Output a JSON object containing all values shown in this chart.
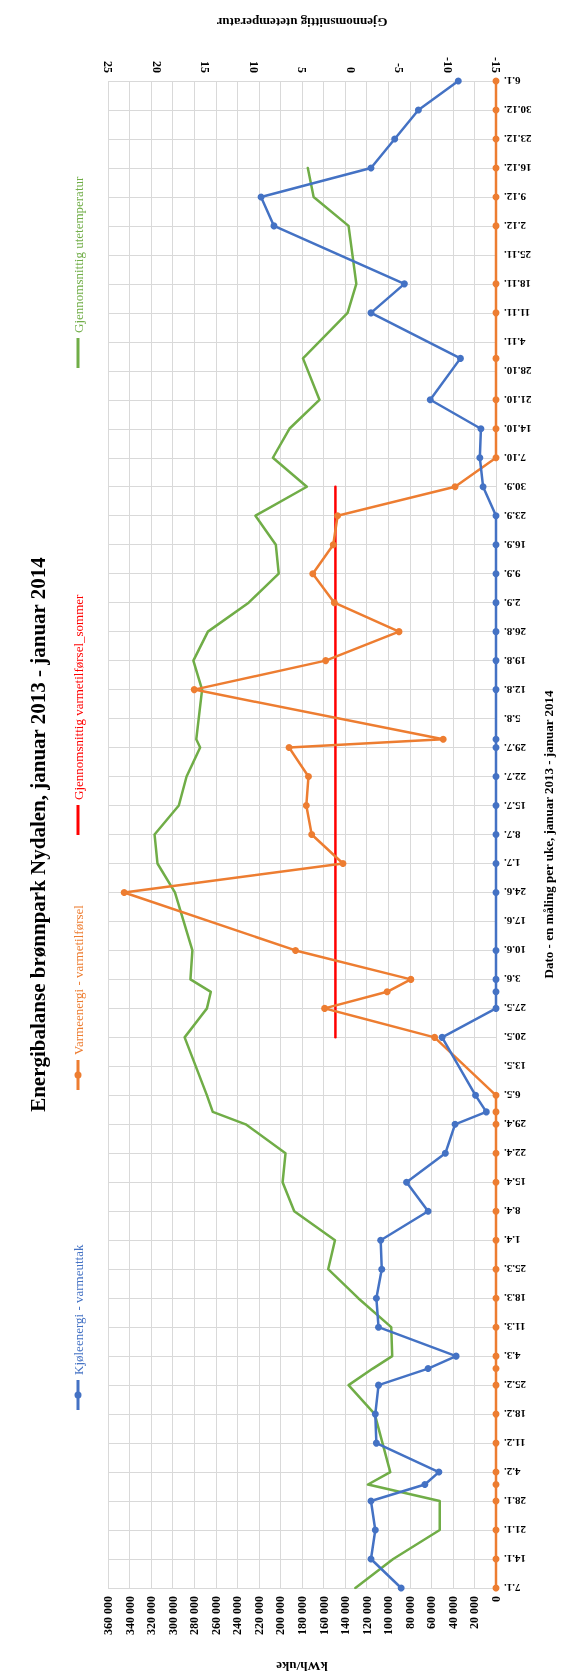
{
  "chart_data": {
    "type": "line",
    "orientation": "horizontal",
    "title": "Energibalanse brønnpark Nydalen, januar 2013 - januar 2014",
    "xlabel": "kWh/uke",
    "ylabel": "Dato - en måling per uke, januar 2013 - januar 2014",
    "x2label": "Gjennomsnittig utetemperatur",
    "x": [
      "2013-01-07",
      "2013-01-14",
      "2013-01-21",
      "2013-01-28",
      "2013-02-01",
      "2013-02-04",
      "2013-02-11",
      "2013-02-18",
      "2013-02-25",
      "2013-03-01",
      "2013-03-04",
      "2013-03-11",
      "2013-03-18",
      "2013-03-25",
      "2013-04-01",
      "2013-04-08",
      "2013-04-15",
      "2013-04-22",
      "2013-04-29",
      "2013-05-02",
      "2013-05-06",
      "2013-05-20",
      "2013-05-27",
      "2013-05-31",
      "2013-06-03",
      "2013-06-10",
      "2013-06-24",
      "2013-07-01",
      "2013-07-08",
      "2013-07-15",
      "2013-07-22",
      "2013-07-29",
      "2013-07-31",
      "2013-08-12",
      "2013-08-19",
      "2013-08-26",
      "2013-09-02",
      "2013-09-09",
      "2013-09-16",
      "2013-09-23",
      "2013-09-30",
      "2013-10-07",
      "2013-10-14",
      "2013-10-21",
      "2013-10-31",
      "2013-11-11",
      "2013-11-18",
      "2013-12-02",
      "2013-12-09",
      "2013-12-16",
      "2013-12-23",
      "2013-12-30",
      "2014-01-06"
    ],
    "series": [
      {
        "name": "Kjøleenergi - varmeuttak",
        "color": "#4472c4",
        "marker": "circle",
        "values": [
          88000,
          116000,
          112000,
          116000,
          66000,
          53000,
          111000,
          112000,
          109000,
          63000,
          37000,
          109000,
          111000,
          106000,
          107000,
          63000,
          83000,
          47000,
          38000,
          9000,
          19000,
          50000,
          0,
          0,
          0,
          0,
          0,
          0,
          0,
          0,
          0,
          0,
          0,
          0,
          0,
          0,
          0,
          0,
          0,
          0,
          12000,
          15000,
          14000,
          61000,
          33000,
          116000,
          85000,
          206000,
          218000,
          116000,
          94000,
          72000,
          35000
        ]
      },
      {
        "name": "Varmeenergi - varmetilførsel",
        "color": "#ed7d31",
        "marker": "circle",
        "values": [
          0,
          0,
          0,
          0,
          0,
          0,
          0,
          0,
          0,
          0,
          0,
          0,
          0,
          0,
          0,
          0,
          0,
          0,
          0,
          0,
          0,
          57000,
          159000,
          101000,
          79000,
          186000,
          345000,
          142000,
          171000,
          176000,
          174000,
          192000,
          49000,
          280000,
          158000,
          90000,
          150000,
          170000,
          151000,
          147000,
          38000,
          0,
          0,
          0,
          0,
          0,
          0,
          0,
          0,
          0,
          0,
          0,
          0
        ]
      },
      {
        "name": "Gjennomsnittig varmetilførsel_sommer",
        "color": "#ff0000",
        "marker": "none",
        "x": [
          "2013-05-20",
          "2013-09-30"
        ],
        "values": [
          149000,
          149000
        ]
      },
      {
        "name": "Gjennomsnittig utetemperatur",
        "color": "#70ad47",
        "marker": "none",
        "axis": "x2",
        "values": [
          -0.5,
          -4.4,
          -9.2,
          -9.2,
          -1.8,
          -4.1,
          -3.3,
          -2.5,
          0.2,
          -2.3,
          -4.3,
          -4.2,
          -0.8,
          2.3,
          1.6,
          5.8,
          7.0,
          6.7,
          10.8,
          14.2,
          14.8,
          17.1,
          14.8,
          14.4,
          16.5,
          16.3,
          18.1,
          19.9,
          20.2,
          17.7,
          16.9,
          15.5,
          15.9,
          15.3,
          16.2,
          14.7,
          10.5,
          7.4,
          7.7,
          9.8,
          4.5,
          8.0,
          6.3,
          3.2,
          4.9,
          0.3,
          -0.6,
          0.2,
          3.8,
          4.4,
          null,
          null,
          null
        ]
      }
    ],
    "ylim": [
      "2013-01-07",
      "2014-01-06"
    ],
    "yticks": [
      {
        "value": "2013-01-07",
        "label": "7.1."
      },
      {
        "value": "2013-01-14",
        "label": "14.1."
      },
      {
        "value": "2013-01-21",
        "label": "21.1."
      },
      {
        "value": "2013-01-28",
        "label": "28.1."
      },
      {
        "value": "2013-02-04",
        "label": "4.2."
      },
      {
        "value": "2013-02-11",
        "label": "11.2."
      },
      {
        "value": "2013-02-18",
        "label": "18.2."
      },
      {
        "value": "2013-02-25",
        "label": "25.2."
      },
      {
        "value": "2013-03-04",
        "label": "4.3."
      },
      {
        "value": "2013-03-11",
        "label": "11.3."
      },
      {
        "value": "2013-03-18",
        "label": "18.3."
      },
      {
        "value": "2013-03-25",
        "label": "25.3."
      },
      {
        "value": "2013-04-01",
        "label": "1.4."
      },
      {
        "value": "2013-04-08",
        "label": "8.4."
      },
      {
        "value": "2013-04-15",
        "label": "15.4."
      },
      {
        "value": "2013-04-22",
        "label": "22.4."
      },
      {
        "value": "2013-04-29",
        "label": "29.4."
      },
      {
        "value": "2013-05-06",
        "label": "6.5."
      },
      {
        "value": "2013-05-13",
        "label": "13.5."
      },
      {
        "value": "2013-05-20",
        "label": "20.5."
      },
      {
        "value": "2013-05-27",
        "label": "27.5."
      },
      {
        "value": "2013-06-03",
        "label": "3.6."
      },
      {
        "value": "2013-06-10",
        "label": "10.6."
      },
      {
        "value": "2013-06-17",
        "label": "17.6."
      },
      {
        "value": "2013-06-24",
        "label": "24.6."
      },
      {
        "value": "2013-07-01",
        "label": "1.7."
      },
      {
        "value": "2013-07-08",
        "label": "8.7."
      },
      {
        "value": "2013-07-15",
        "label": "15.7."
      },
      {
        "value": "2013-07-22",
        "label": "22.7."
      },
      {
        "value": "2013-07-29",
        "label": "29.7."
      },
      {
        "value": "2013-08-05",
        "label": "5.8."
      },
      {
        "value": "2013-08-12",
        "label": "12.8."
      },
      {
        "value": "2013-08-19",
        "label": "19.8."
      },
      {
        "value": "2013-08-26",
        "label": "26.8."
      },
      {
        "value": "2013-09-02",
        "label": "2.9."
      },
      {
        "value": "2013-09-09",
        "label": "9.9."
      },
      {
        "value": "2013-09-16",
        "label": "16.9."
      },
      {
        "value": "2013-09-23",
        "label": "23.9."
      },
      {
        "value": "2013-09-30",
        "label": "30.9."
      },
      {
        "value": "2013-10-07",
        "label": "7.10."
      },
      {
        "value": "2013-10-14",
        "label": "14.10."
      },
      {
        "value": "2013-10-21",
        "label": "21.10."
      },
      {
        "value": "2013-10-28",
        "label": "28.10."
      },
      {
        "value": "2013-11-04",
        "label": "4.11."
      },
      {
        "value": "2013-11-11",
        "label": "11.11."
      },
      {
        "value": "2013-11-18",
        "label": "18.11."
      },
      {
        "value": "2013-11-25",
        "label": "25.11."
      },
      {
        "value": "2013-12-02",
        "label": "2.12."
      },
      {
        "value": "2013-12-09",
        "label": "9.12."
      },
      {
        "value": "2013-12-16",
        "label": "16.12."
      },
      {
        "value": "2013-12-23",
        "label": "23.12."
      },
      {
        "value": "2013-12-30",
        "label": "30.12."
      },
      {
        "value": "2014-01-06",
        "label": "6.1."
      }
    ],
    "xlim": [
      360000,
      0
    ],
    "xticks": [
      {
        "value": 0,
        "label": "0"
      },
      {
        "value": 20000,
        "label": "20 000"
      },
      {
        "value": 40000,
        "label": "40 000"
      },
      {
        "value": 60000,
        "label": "60 000"
      },
      {
        "value": 80000,
        "label": "80 000"
      },
      {
        "value": 100000,
        "label": "100 000"
      },
      {
        "value": 120000,
        "label": "120 000"
      },
      {
        "value": 140000,
        "label": "140 000"
      },
      {
        "value": 160000,
        "label": "160 000"
      },
      {
        "value": 180000,
        "label": "180 000"
      },
      {
        "value": 200000,
        "label": "200 000"
      },
      {
        "value": 220000,
        "label": "220 000"
      },
      {
        "value": 240000,
        "label": "240 000"
      },
      {
        "value": 260000,
        "label": "260 000"
      },
      {
        "value": 280000,
        "label": "280 000"
      },
      {
        "value": 300000,
        "label": "300 000"
      },
      {
        "value": 320000,
        "label": "320 000"
      },
      {
        "value": 340000,
        "label": "340 000"
      },
      {
        "value": 360000,
        "label": "360 000"
      }
    ],
    "x2lim": [
      25,
      -15
    ],
    "x2ticks": [
      -15,
      -10,
      -5,
      0,
      5,
      10,
      15,
      20,
      25
    ],
    "grid": true,
    "legend": "left"
  }
}
